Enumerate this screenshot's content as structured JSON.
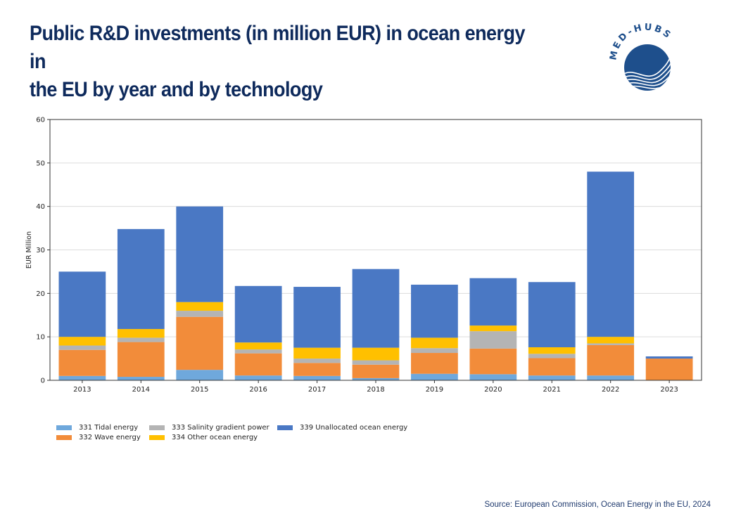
{
  "header": {
    "title_line1": "Public R&D investments (in million EUR) in ocean energy in",
    "title_line2": "the EU by year and by technology",
    "logo_text": "MED-HUBS"
  },
  "footer": {
    "source": "Source: European Commission, Ocean Energy in the EU, 2024"
  },
  "chart_data": {
    "type": "bar",
    "stacked": true,
    "title": "Public R&D investments (in million EUR) in ocean energy in the EU by year and by technology",
    "xlabel": "",
    "ylabel": "EUR Million",
    "ylim": [
      0,
      60
    ],
    "yticks": [
      0,
      10,
      20,
      30,
      40,
      50,
      60
    ],
    "grid": "horizontal",
    "legend_position": "bottom-left",
    "categories": [
      "2013",
      "2014",
      "2015",
      "2016",
      "2017",
      "2018",
      "2019",
      "2020",
      "2021",
      "2022",
      "2023"
    ],
    "series": [
      {
        "name": "331 Tidal energy",
        "color": "#6fa8dc",
        "values": [
          1.0,
          0.8,
          2.4,
          1.1,
          1.0,
          0.5,
          1.5,
          1.4,
          1.1,
          1.1,
          0.0
        ]
      },
      {
        "name": "332 Wave energy",
        "color": "#f28c3a",
        "values": [
          6.0,
          8.0,
          12.2,
          5.1,
          3.0,
          3.1,
          4.8,
          5.9,
          4.0,
          7.0,
          5.0
        ]
      },
      {
        "name": "333 Salinity gradient power",
        "color": "#b4b4b4",
        "values": [
          1.0,
          1.0,
          1.4,
          0.9,
          1.0,
          1.0,
          1.1,
          4.0,
          1.0,
          0.4,
          0.0
        ]
      },
      {
        "name": "334 Other ocean energy",
        "color": "#ffc000",
        "values": [
          2.0,
          2.0,
          2.0,
          1.6,
          2.5,
          2.9,
          2.4,
          1.3,
          1.5,
          1.5,
          0.0
        ]
      },
      {
        "name": "339 Unallocated ocean energy",
        "color": "#4a78c4",
        "values": [
          15.0,
          23.0,
          22.0,
          13.0,
          14.0,
          18.1,
          12.2,
          10.9,
          15.0,
          38.0,
          0.5
        ]
      }
    ],
    "totals": [
      25.0,
      34.8,
      40.0,
      21.7,
      21.5,
      25.6,
      22.0,
      23.5,
      22.6,
      48.0,
      5.5
    ]
  }
}
